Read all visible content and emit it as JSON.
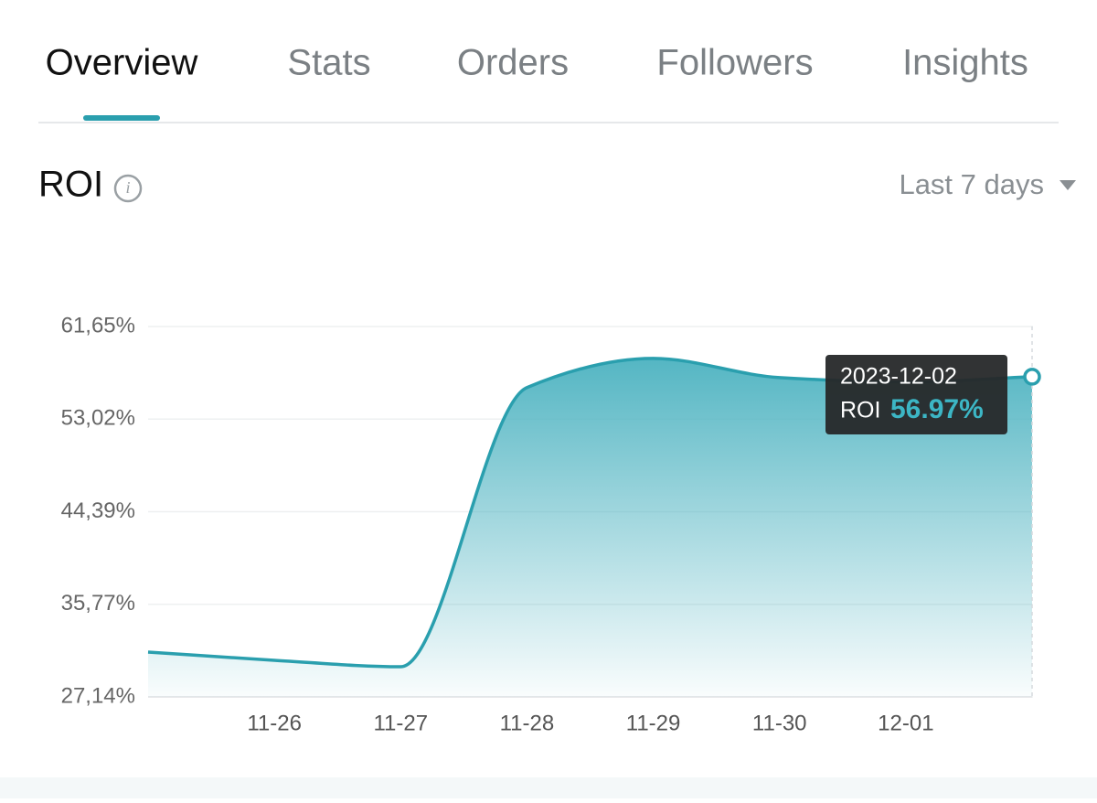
{
  "tabs": {
    "items": [
      "Overview",
      "Stats",
      "Orders",
      "Followers",
      "Insights"
    ],
    "active": 0
  },
  "section": {
    "title": "ROI",
    "range": "Last 7 days"
  },
  "chart_data": {
    "type": "area",
    "categories": [
      null,
      "11-26",
      "11-27",
      "11-28",
      "11-29",
      "11-30",
      "12-01",
      null
    ],
    "values": [
      31.32,
      30.55,
      29.95,
      55.96,
      58.68,
      56.89,
      56.47,
      56.97
    ],
    "color": "#2a9fae",
    "ylim": [
      27.14,
      61.65
    ],
    "yticks": [
      {
        "value": 27.14,
        "label": "27,14%"
      },
      {
        "value": 35.77,
        "label": "35,77%"
      },
      {
        "value": 44.39,
        "label": "44,39%"
      },
      {
        "value": 53.02,
        "label": "53,02%"
      },
      {
        "value": 61.65,
        "label": "61,65%"
      }
    ],
    "grid": true,
    "tooltip": {
      "date": "2023-12-02",
      "series_name": "ROI",
      "value_label": "56.97%"
    }
  }
}
